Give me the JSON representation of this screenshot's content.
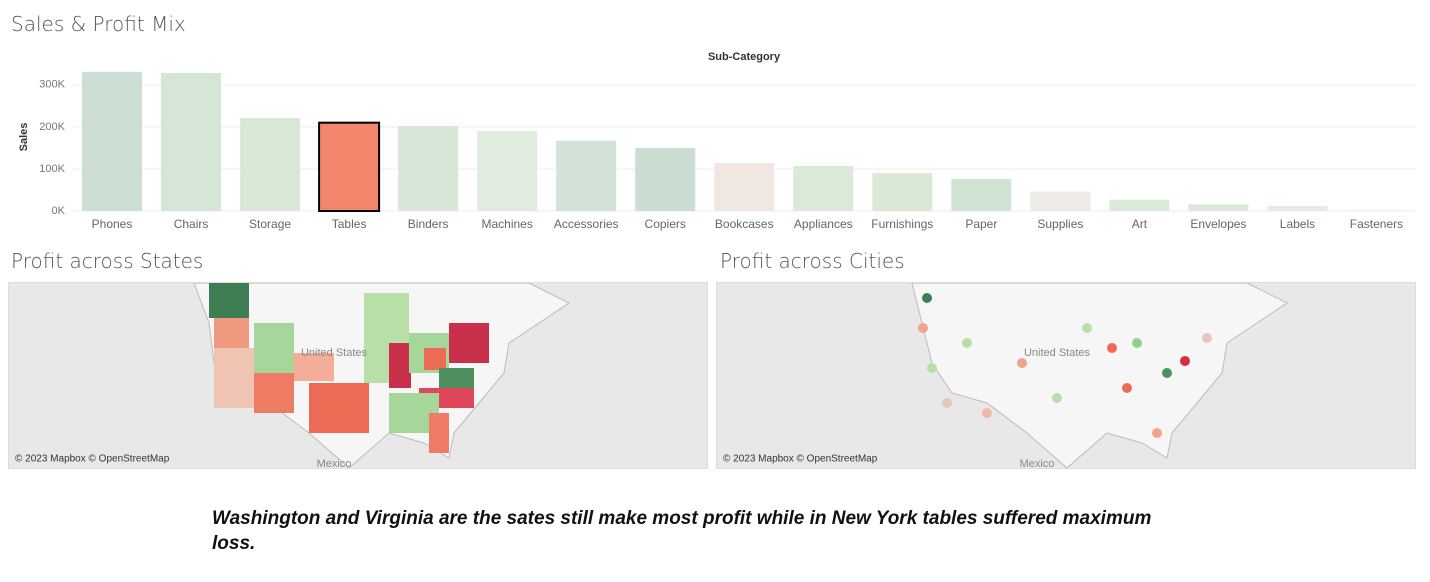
{
  "chart_data": {
    "type": "bar",
    "title": "Sales & Profit Mix",
    "x_label": "Sub-Category",
    "y_label": "Sales",
    "categories": [
      "Phones",
      "Chairs",
      "Storage",
      "Tables",
      "Binders",
      "Machines",
      "Accessories",
      "Copiers",
      "Bookcases",
      "Appliances",
      "Furnishings",
      "Paper",
      "Supplies",
      "Art",
      "Envelopes",
      "Labels",
      "Fasteners"
    ],
    "values": [
      331000,
      328000,
      221000,
      210000,
      202000,
      190000,
      167000,
      150000,
      114000,
      107000,
      90000,
      76000,
      46000,
      27000,
      16000,
      12000,
      3000
    ],
    "colors": [
      "#cddfd4",
      "#d5e6d6",
      "#d9e8d6",
      "#f4856d",
      "#d7e6d6",
      "#e0ecdd",
      "#d3e2d6",
      "#cbdcd2",
      "#f0e7e3",
      "#dbe9d9",
      "#d9e9d6",
      "#d1e3d2",
      "#eeeae6",
      "#dcebd9",
      "#dbe9d8",
      "#e2ecdf",
      "#eef3ec"
    ],
    "outlined": 3,
    "ylim": [
      0,
      340000
    ],
    "yticks": [
      {
        "value": 0,
        "label": "0K"
      },
      {
        "value": 100000,
        "label": "100K"
      },
      {
        "value": 200000,
        "label": "200K"
      },
      {
        "value": 300000,
        "label": "300K"
      }
    ],
    "grid": true
  },
  "maps": [
    {
      "title": "Profit across States",
      "country_label": "United States",
      "neighbor_label": "Mexico",
      "attribution": "© 2023 Mapbox © OpenStreetMap"
    },
    {
      "title": "Profit across Cities",
      "country_label": "United States",
      "neighbor_label": "Mexico",
      "attribution": "© 2023 Mapbox © OpenStreetMap"
    }
  ],
  "caption": "Washington and Virginia are the sates still make most profit while in New York tables suffered maximum loss."
}
